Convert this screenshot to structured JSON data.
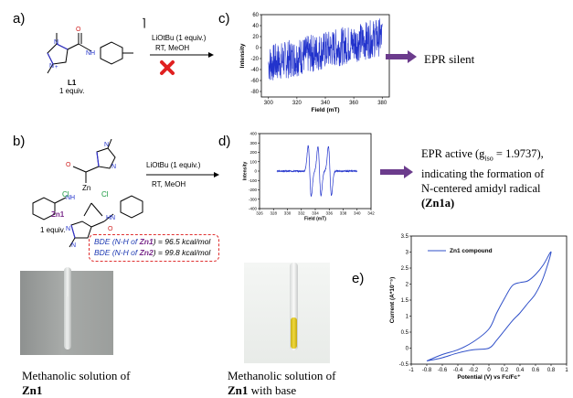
{
  "panels": {
    "a": "a)",
    "b": "b)",
    "c": "c)",
    "d": "d)",
    "e": "e)"
  },
  "scheme_a": {
    "compound": "L1",
    "equiv": "1 equiv.",
    "reagent": "LiOtBu (1 equiv.)",
    "conditions": "RT, MeOH"
  },
  "scheme_b": {
    "compound": "Zn1",
    "equiv": "1 equiv.",
    "reagent": "LiOtBu (1 equiv.)",
    "conditions": "RT, MeOH",
    "cl_left": "Cl",
    "cl_right": "Cl",
    "zn": "Zn"
  },
  "bde": {
    "line1_prefix": "BDE (N-H of ",
    "line1_cmpd": "Zn1",
    "line1_value": ") = 96.5 kcal/mol",
    "line2_prefix": "BDE (N-H of ",
    "line2_cmpd": "Zn2",
    "line2_value": ") = 99.8 kcal/mol"
  },
  "epr_c_result": "EPR silent",
  "epr_d_result": {
    "line1": "EPR active (g",
    "line1_sub": "iso",
    "line1_rest": " = 1.9737),",
    "line2": "indicating the formation of",
    "line3": "N-centered amidyl radical",
    "line4": "(Zn1a)"
  },
  "photo_left": {
    "caption1": "Methanolic solution of",
    "caption2": "Zn1"
  },
  "photo_right": {
    "caption1": "Methanolic solution of",
    "caption2": "Zn1",
    "caption2_rest": " with base"
  },
  "colors": {
    "trace": "#2233cc",
    "arrow": "#6b3b8c",
    "cross": "#e02020",
    "bde_border": "#e03030",
    "cv": "#2f4fc8"
  },
  "chart_data": [
    {
      "type": "line",
      "title": "",
      "xlabel": "Field (mT)",
      "ylabel": "Intensity",
      "xlim": [
        295,
        385
      ],
      "ylim": [
        -90,
        60
      ],
      "xticks": [
        300,
        320,
        340,
        360,
        380
      ],
      "yticks": [
        60,
        40,
        20,
        0,
        -20,
        -40,
        -60,
        -80
      ],
      "series": [
        {
          "x_start": 300,
          "x_end": 380,
          "trend_start": -30,
          "trend_end": 20,
          "noise_amplitude": 35
        }
      ]
    },
    {
      "type": "line",
      "title": "",
      "xlabel": "Field (mT)",
      "ylabel": "Intensity",
      "xlim": [
        326,
        342
      ],
      "ylim": [
        -400,
        400
      ],
      "xticks": [
        326,
        328,
        330,
        332,
        334,
        336,
        338,
        340,
        342
      ],
      "yticks": [
        400,
        300,
        200,
        100,
        0,
        -100,
        -200,
        -300,
        -400
      ],
      "series": [
        {
          "lines": [
            {
              "center": 333.2,
              "amplitude": 270
            },
            {
              "center": 334.6,
              "amplitude": 260
            },
            {
              "center": 336.1,
              "amplitude": 260
            }
          ]
        }
      ]
    },
    {
      "type": "line",
      "title": "",
      "xlabel": "Potential (V) vs Fc/Fc⁺",
      "ylabel": "Current (A*10⁻⁵)",
      "legend": "Zn1 compound",
      "xlim": [
        -1.0,
        1.0
      ],
      "ylim": [
        -0.5,
        3.5
      ],
      "xticks": [
        -1.0,
        -0.8,
        -0.6,
        -0.4,
        -0.2,
        0.0,
        0.2,
        0.4,
        0.6,
        0.8,
        1.0
      ],
      "yticks": [
        -0.5,
        0.0,
        0.5,
        1.0,
        1.5,
        2.0,
        2.5,
        3.0,
        3.5
      ],
      "series": [
        {
          "name": "Zn1 compound",
          "x": [
            -0.8,
            -0.6,
            -0.4,
            -0.2,
            0.0,
            0.1,
            0.2,
            0.3,
            0.4,
            0.5,
            0.6,
            0.7,
            0.8,
            0.7,
            0.6,
            0.5,
            0.4,
            0.3,
            0.2,
            0.1,
            0.0,
            -0.2,
            -0.4,
            -0.6,
            -0.8
          ],
          "y": [
            -0.4,
            -0.2,
            -0.05,
            0.2,
            0.6,
            1.1,
            1.55,
            1.95,
            2.05,
            2.1,
            2.3,
            2.6,
            3.0,
            2.2,
            1.7,
            1.4,
            1.1,
            0.85,
            0.55,
            0.25,
            0.0,
            -0.05,
            -0.15,
            -0.3,
            -0.4
          ]
        }
      ]
    }
  ]
}
